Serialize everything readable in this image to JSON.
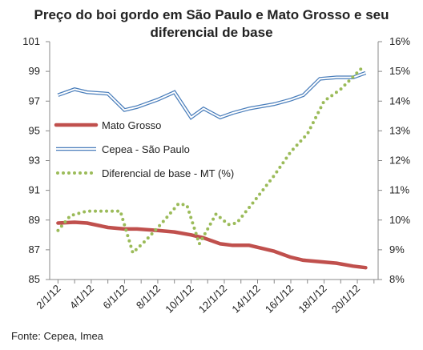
{
  "chart_data": {
    "type": "line",
    "title_line1": "Preço do boi gordo em São Paulo e Mato Grosso e seu",
    "title_line2": "diferencial de base",
    "source": "Fonte: Cepea, Imea",
    "x_labels": [
      "2/1/12",
      "4/1/12",
      "6/1/12",
      "8/1/12",
      "10/1/12",
      "12/1/12",
      "14/1/12",
      "16/1/12",
      "18/1/12",
      "20/1/12"
    ],
    "x_days": [
      2,
      4,
      6,
      8,
      10,
      12,
      14,
      16,
      18,
      20
    ],
    "y_left": {
      "min": 85,
      "max": 101,
      "ticks": [
        "85",
        "87",
        "89",
        "91",
        "93",
        "95",
        "97",
        "99",
        "101"
      ]
    },
    "y_right": {
      "min": 8,
      "max": 16,
      "ticks": [
        "8%",
        "9%",
        "10%",
        "11%",
        "12%",
        "13%",
        "14%",
        "15%",
        "16%"
      ]
    },
    "series": [
      {
        "name": "Mato Grosso",
        "axis": "left",
        "color": "#c0504d",
        "style": "solid",
        "points": [
          [
            2,
            88.8
          ],
          [
            3,
            88.85
          ],
          [
            3.75,
            88.8
          ],
          [
            5,
            88.5
          ],
          [
            6,
            88.4
          ],
          [
            6.75,
            88.4
          ],
          [
            8,
            88.3
          ],
          [
            9,
            88.2
          ],
          [
            10,
            88.0
          ],
          [
            10.75,
            87.8
          ],
          [
            11.75,
            87.4
          ],
          [
            12.5,
            87.3
          ],
          [
            13.5,
            87.3
          ],
          [
            15,
            86.9
          ],
          [
            16,
            86.5
          ],
          [
            16.75,
            86.3
          ],
          [
            17.75,
            86.2
          ],
          [
            18.75,
            86.1
          ],
          [
            19.75,
            85.9
          ],
          [
            20.5,
            85.8
          ]
        ]
      },
      {
        "name": "Cepea - São Paulo",
        "axis": "left",
        "color": "#4a7ebb",
        "style": "double",
        "points": [
          [
            2,
            97.4
          ],
          [
            3,
            97.8
          ],
          [
            3.75,
            97.6
          ],
          [
            5,
            97.5
          ],
          [
            6,
            96.4
          ],
          [
            6.75,
            96.6
          ],
          [
            8,
            97.1
          ],
          [
            9,
            97.6
          ],
          [
            10,
            95.9
          ],
          [
            10.75,
            96.5
          ],
          [
            11.75,
            95.9
          ],
          [
            12.5,
            96.2
          ],
          [
            13.5,
            96.5
          ],
          [
            15,
            96.8
          ],
          [
            16,
            97.1
          ],
          [
            16.75,
            97.4
          ],
          [
            17.75,
            98.5
          ],
          [
            18.75,
            98.6
          ],
          [
            19.75,
            98.6
          ],
          [
            20.5,
            98.9
          ]
        ]
      },
      {
        "name": "Diferencial de base - MT (%)",
        "axis": "right",
        "color": "#9bbb59",
        "style": "dotted",
        "points": [
          [
            2,
            9.65
          ],
          [
            2.75,
            10.15
          ],
          [
            3.75,
            10.3
          ],
          [
            4.75,
            10.3
          ],
          [
            5.75,
            10.3
          ],
          [
            6.5,
            8.9
          ],
          [
            7.25,
            9.3
          ],
          [
            8.25,
            9.9
          ],
          [
            9.25,
            10.55
          ],
          [
            9.75,
            10.5
          ],
          [
            10.5,
            9.2
          ],
          [
            11.5,
            10.2
          ],
          [
            12.25,
            9.85
          ],
          [
            12.75,
            9.9
          ],
          [
            13.75,
            10.6
          ],
          [
            15,
            11.5
          ],
          [
            16,
            12.3
          ],
          [
            17,
            12.9
          ],
          [
            18,
            14.0
          ],
          [
            19,
            14.4
          ],
          [
            20.25,
            15.1
          ]
        ]
      }
    ]
  }
}
